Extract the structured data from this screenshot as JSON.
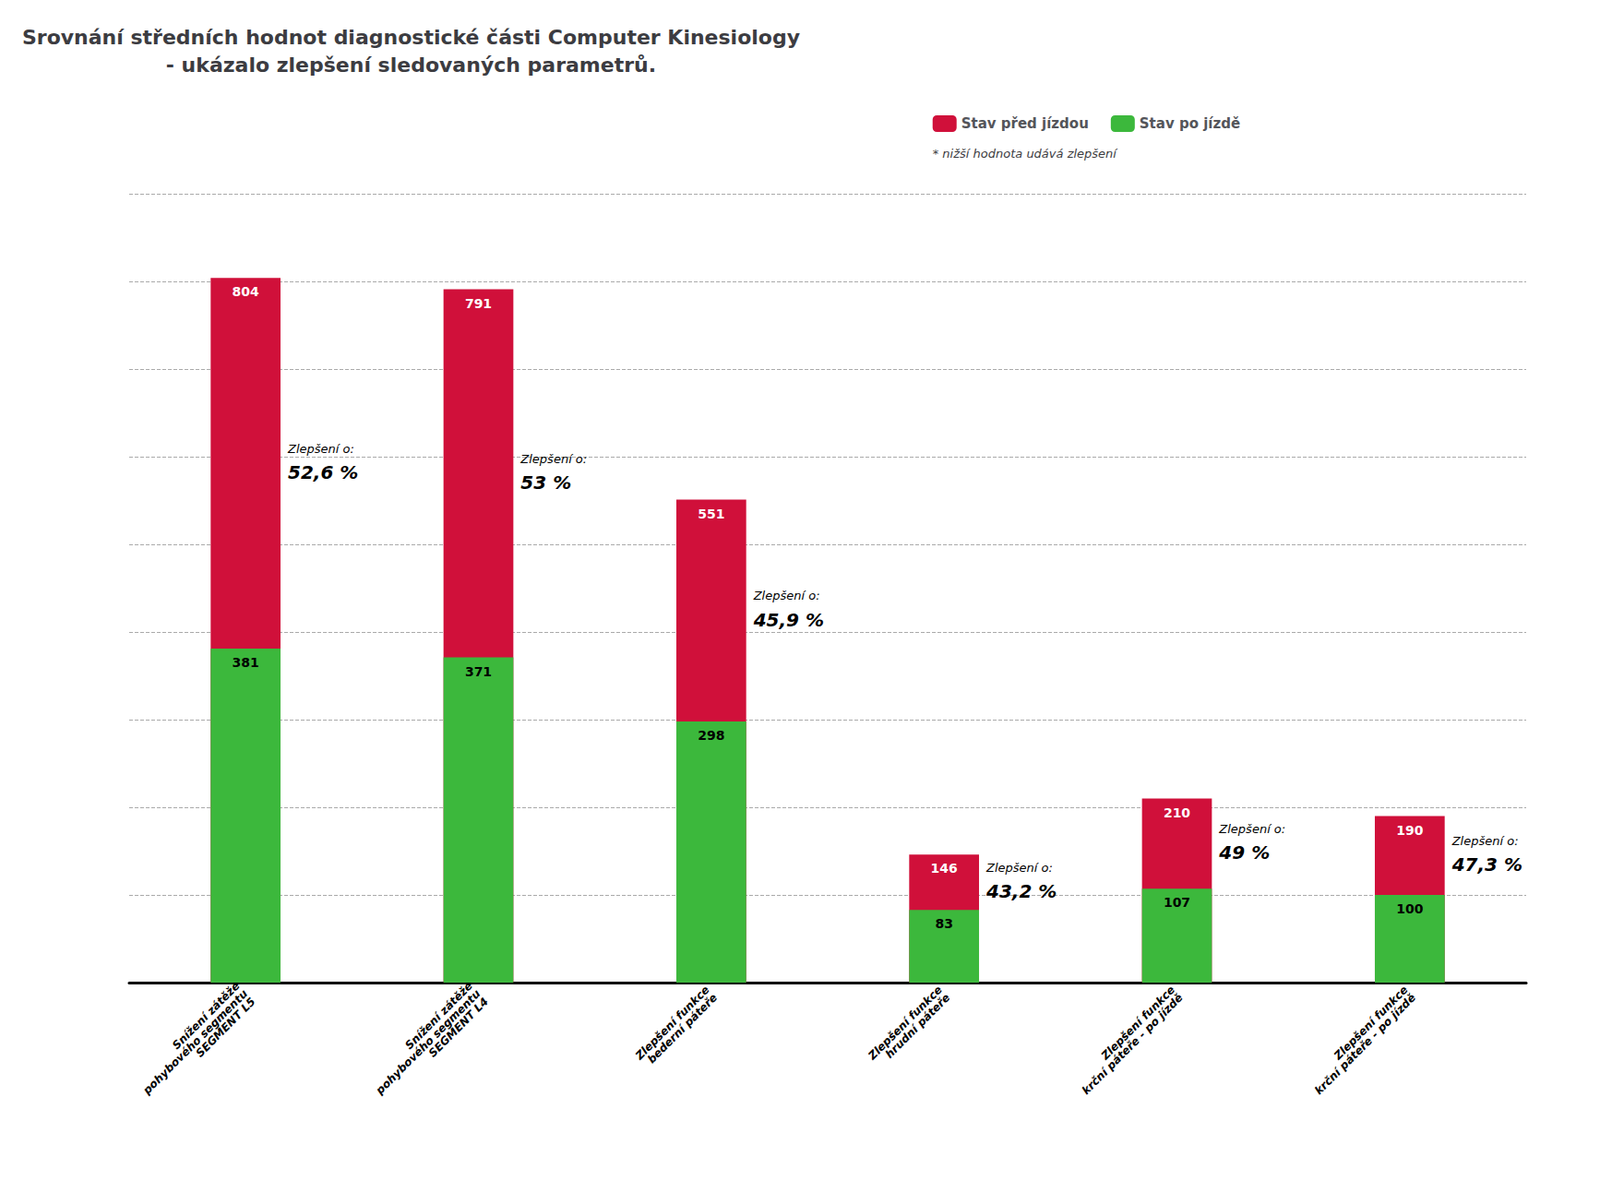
{
  "chart_data": {
    "type": "bar",
    "title": "Srovnání středních hodnot diagnostické části Computer Kinesiology\n- ukázalo zlepšení sledovaných parametrů.",
    "categories": [
      "Snížení zátěže\npohybového segmentu\nSEGMENT L5",
      "Snížení zátěže\npohybového segmentu\nSEGMENT L4",
      "Zlepšení funkce\nbederní páteře",
      "Zlepšení funkce\nhrudní páteře",
      "Zlepšení funkce\nkrční páteře - po jízdě",
      "Zlepšení funkce\nkrční páteře - po jízdě"
    ],
    "series": [
      {
        "name": "Stav před jízdou",
        "color": "#d0103a",
        "values": [
          804,
          791,
          551,
          146,
          210,
          190
        ]
      },
      {
        "name": "Stav po jízdě",
        "color": "#3cb83c",
        "values": [
          381,
          371,
          298,
          83,
          107,
          100
        ]
      }
    ],
    "annotations": {
      "label": "Zlepšení o:",
      "values": [
        "52,6 %",
        "53 %",
        "45,9 %",
        "43,2 %",
        "49 %",
        "47,3 %"
      ]
    },
    "note": "* nižší hodnota udává zlepšení",
    "ylim": [
      0,
      900
    ],
    "yticks": [
      0,
      100,
      200,
      300,
      400,
      500,
      600,
      700,
      800,
      900
    ],
    "grid": true,
    "legend": "top",
    "stacked": false,
    "data_labels": true,
    "tick_labels": "x"
  }
}
